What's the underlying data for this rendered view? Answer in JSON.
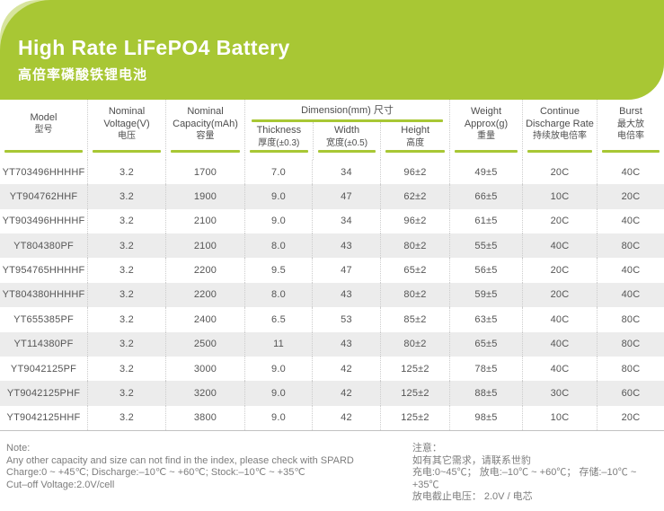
{
  "banner": {
    "title": "High Rate LiFePO4 Battery",
    "subtitle": "高倍率磷酸铁锂电池"
  },
  "colors": {
    "accent_green": "#a8c734",
    "accent_green_light": "#d7e49d",
    "alt_row_gray": "#ececec",
    "text_gray": "#555555"
  },
  "table": {
    "header": {
      "model": [
        "Model",
        "型号"
      ],
      "voltage": [
        "Nominal",
        "Voltage(V)",
        "电压"
      ],
      "capacity": [
        "Nominal",
        "Capacity(mAh)",
        "容量"
      ],
      "dimension_group": "Dimension(mm) 尺寸",
      "thickness": [
        "Thickness",
        "厚度(±0.3)"
      ],
      "width": [
        "Width",
        "宽度(±0.5)"
      ],
      "height": [
        "Height",
        "高度"
      ],
      "weight": [
        "Weight",
        "Approx(g)",
        "重量"
      ],
      "discharge": [
        "Continue",
        "Discharge Rate",
        "持续放电倍率"
      ],
      "burst": [
        "Burst",
        "最大放",
        "电倍率"
      ]
    },
    "rows": [
      {
        "model": "YT703496HHHHF",
        "voltage": "3.2",
        "capacity": "1700",
        "thickness": "7.0",
        "width": "34",
        "height": "96±2",
        "weight": "49±5",
        "discharge": "20C",
        "burst": "40C"
      },
      {
        "model": "YT904762HHF",
        "voltage": "3.2",
        "capacity": "1900",
        "thickness": "9.0",
        "width": "47",
        "height": "62±2",
        "weight": "66±5",
        "discharge": "10C",
        "burst": "20C"
      },
      {
        "model": "YT903496HHHHF",
        "voltage": "3.2",
        "capacity": "2100",
        "thickness": "9.0",
        "width": "34",
        "height": "96±2",
        "weight": "61±5",
        "discharge": "20C",
        "burst": "40C"
      },
      {
        "model": "YT804380PF",
        "voltage": "3.2",
        "capacity": "2100",
        "thickness": "8.0",
        "width": "43",
        "height": "80±2",
        "weight": "55±5",
        "discharge": "40C",
        "burst": "80C"
      },
      {
        "model": "YT954765HHHHF",
        "voltage": "3.2",
        "capacity": "2200",
        "thickness": "9.5",
        "width": "47",
        "height": "65±2",
        "weight": "56±5",
        "discharge": "20C",
        "burst": "40C"
      },
      {
        "model": "YT804380HHHHF",
        "voltage": "3.2",
        "capacity": "2200",
        "thickness": "8.0",
        "width": "43",
        "height": "80±2",
        "weight": "59±5",
        "discharge": "20C",
        "burst": "40C"
      },
      {
        "model": "YT655385PF",
        "voltage": "3.2",
        "capacity": "2400",
        "thickness": "6.5",
        "width": "53",
        "height": "85±2",
        "weight": "63±5",
        "discharge": "40C",
        "burst": "80C"
      },
      {
        "model": "YT114380PF",
        "voltage": "3.2",
        "capacity": "2500",
        "thickness": "11",
        "width": "43",
        "height": "80±2",
        "weight": "65±5",
        "discharge": "40C",
        "burst": "80C"
      },
      {
        "model": "YT9042125PF",
        "voltage": "3.2",
        "capacity": "3000",
        "thickness": "9.0",
        "width": "42",
        "height": "125±2",
        "weight": "78±5",
        "discharge": "40C",
        "burst": "80C"
      },
      {
        "model": "YT9042125PHF",
        "voltage": "3.2",
        "capacity": "3200",
        "thickness": "9.0",
        "width": "42",
        "height": "125±2",
        "weight": "88±5",
        "discharge": "30C",
        "burst": "60C"
      },
      {
        "model": "YT9042125HHF",
        "voltage": "3.2",
        "capacity": "3800",
        "thickness": "9.0",
        "width": "42",
        "height": "125±2",
        "weight": "98±5",
        "discharge": "10C",
        "burst": "20C"
      }
    ]
  },
  "notes": {
    "left": [
      "Note:",
      "Any other capacity and size can not find in the index, please check with SPARD",
      "Charge:0 ~ +45℃; Discharge:–10℃ ~ +60℃; Stock:–10℃ ~ +35℃",
      "Cut–off Voltage:2.0V/cell"
    ],
    "right": [
      "注意：",
      "如有其它需求，请联系世豹",
      "充电:0~45℃； 放电:–10℃ ~ +60℃； 存储:–10℃ ~ +35℃",
      "放电截止电压： 2.0V / 电芯"
    ]
  }
}
